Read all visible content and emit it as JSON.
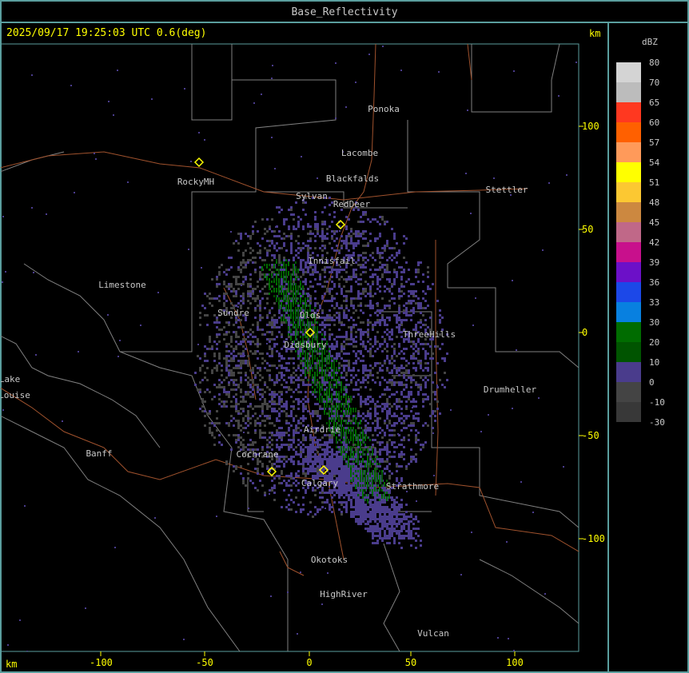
{
  "window": {
    "title": "Base_Reflectivity"
  },
  "header": {
    "timestamp": "2025/09/17 19:25:03 UTC 0.6(deg)",
    "units_right": "km",
    "units_bottom": "km"
  },
  "axes": {
    "y_ticks": [
      "100",
      "50",
      "0",
      "-50",
      "-100"
    ],
    "x_ticks": [
      "-100",
      "-50",
      "0",
      "50",
      "100"
    ]
  },
  "legend": {
    "unit": "dBZ",
    "labels": [
      "80",
      "70",
      "65",
      "60",
      "57",
      "54",
      "51",
      "48",
      "45",
      "42",
      "39",
      "36",
      "33",
      "30",
      "20",
      "10",
      "0",
      "-10",
      "-30"
    ],
    "colors": [
      "#d4d4d4",
      "#bcbcbc",
      "#ff3820",
      "#ff6000",
      "#ff9a5a",
      "#ffff00",
      "#fcc832",
      "#cc8840",
      "#c06888",
      "#c8108c",
      "#6c10c8",
      "#1c48e8",
      "#0880e0",
      "#006c00",
      "#005400",
      "#4a3c8c",
      "#444444",
      "#383838"
    ]
  },
  "places": [
    "Ponoka",
    "Lacombe",
    "Blackfalds",
    "Sylvan",
    "RedDeer",
    "Stettler",
    "RockyMH",
    "Limestone",
    "Innisfail",
    "Sundre",
    "Olds",
    "Didsbury",
    "ThreeHills",
    "Drumheller",
    "Lake",
    "Louise",
    "Banff",
    "Cochrane",
    "Airdrie",
    "Calgary",
    "Strathmore",
    "Okotoks",
    "HighRiver",
    "Vulcan"
  ],
  "colors": {
    "frame": "#5a9e9e",
    "axis": "#ffff00",
    "roads": "#a0522d",
    "borders": "#808080",
    "place_labels": "#c8c8c8"
  }
}
